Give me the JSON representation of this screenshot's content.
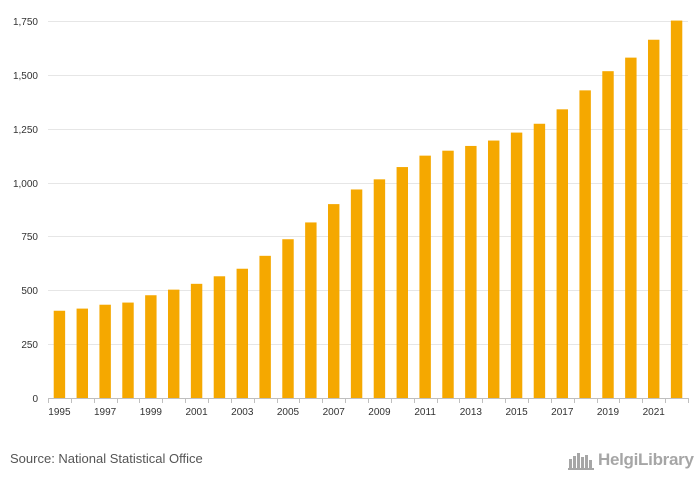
{
  "chart_data": {
    "type": "bar",
    "title": "",
    "xlabel": "",
    "ylabel": "",
    "ylim": [
      0,
      1750
    ],
    "yticks": [
      0,
      250,
      500,
      750,
      1000,
      1250,
      1500,
      1750
    ],
    "ytick_labels": [
      "0",
      "250",
      "500",
      "750",
      "1,000",
      "1,250",
      "1,500",
      "1,750"
    ],
    "categories": [
      "1995",
      "1996",
      "1997",
      "1998",
      "1999",
      "2000",
      "2001",
      "2002",
      "2003",
      "2004",
      "2005",
      "2006",
      "2007",
      "2008",
      "2009",
      "2010",
      "2011",
      "2012",
      "2013",
      "2014",
      "2015",
      "2016",
      "2017",
      "2018",
      "2019",
      "2020",
      "2021",
      "2022"
    ],
    "xtick_labels": [
      "1995",
      "",
      "1997",
      "",
      "1999",
      "",
      "2001",
      "",
      "2003",
      "",
      "2005",
      "",
      "2007",
      "",
      "2009",
      "",
      "2011",
      "",
      "2013",
      "",
      "2015",
      "",
      "2017",
      "",
      "2019",
      "",
      "2021",
      ""
    ],
    "values": [
      405,
      415,
      433,
      443,
      477,
      503,
      530,
      565,
      600,
      660,
      737,
      815,
      900,
      968,
      1015,
      1072,
      1125,
      1148,
      1170,
      1195,
      1232,
      1273,
      1340,
      1428,
      1517,
      1580,
      1663,
      1752
    ],
    "bar_color": "#f5a800",
    "grid": true
  },
  "footer": {
    "source": "Source: National Statistical Office",
    "brand": "HelgiLibrary"
  },
  "icons": {
    "brand_logo": "city-skyline-icon"
  }
}
